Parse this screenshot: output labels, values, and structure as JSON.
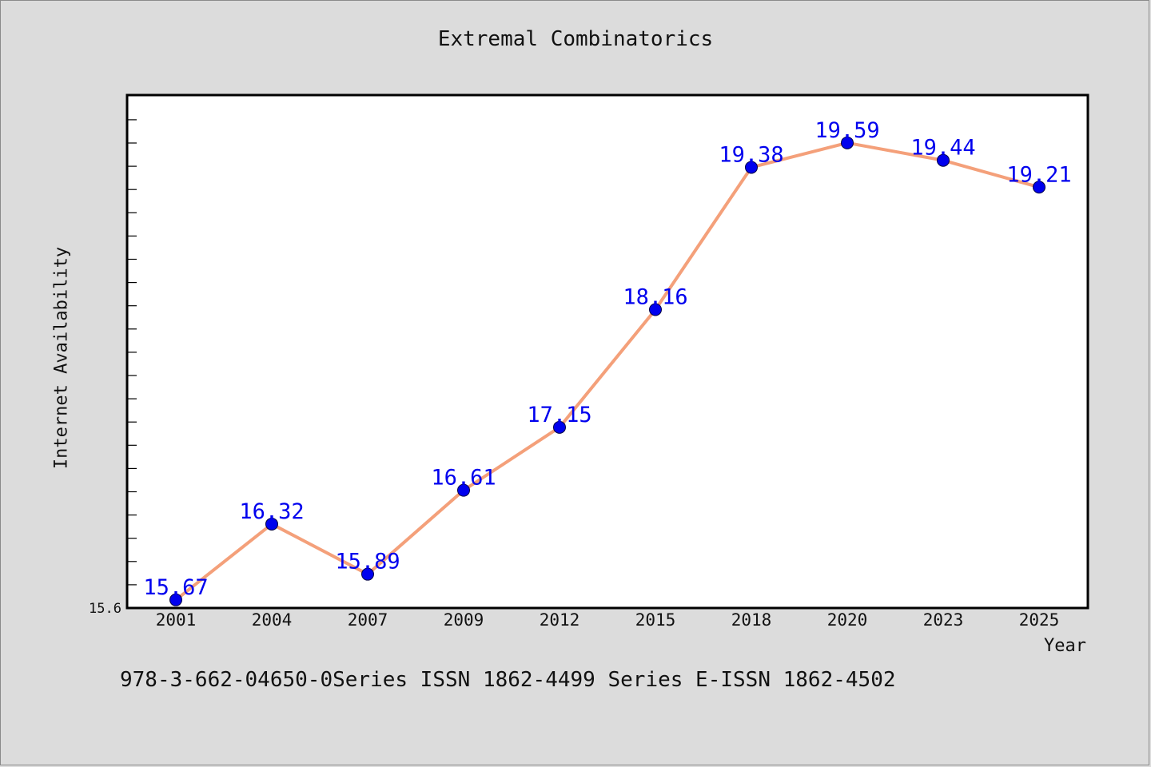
{
  "chart_data": {
    "type": "line",
    "title": "Extremal Combinatorics",
    "xlabel": "Year",
    "ylabel": "Internet Availability",
    "categories": [
      "2001",
      "2004",
      "2007",
      "2009",
      "2012",
      "2015",
      "2018",
      "2020",
      "2023",
      "2025"
    ],
    "series": [
      {
        "values": [
          15.67,
          16.32,
          15.89,
          16.61,
          17.15,
          18.16,
          19.38,
          19.59,
          19.44,
          19.21
        ],
        "labels": [
          "15.67",
          "16.32",
          "15.89",
          "16.61",
          "17.15",
          "18.16",
          "19.38",
          "19.59",
          "19.44",
          "19.21"
        ]
      }
    ],
    "ylim": [
      15.6,
      20.0
    ],
    "y_tick_label": "15.6",
    "grid": false,
    "colors": {
      "line": "#f4a07a",
      "marker": "#0000ee",
      "data_label": "#0000ee",
      "plot_bg": "#ffffff",
      "page_bg": "#dcdcdc"
    }
  },
  "footer": {
    "text": "978-3-662-04650-0Series ISSN 1862-4499 Series E-ISSN 1862-4502"
  }
}
